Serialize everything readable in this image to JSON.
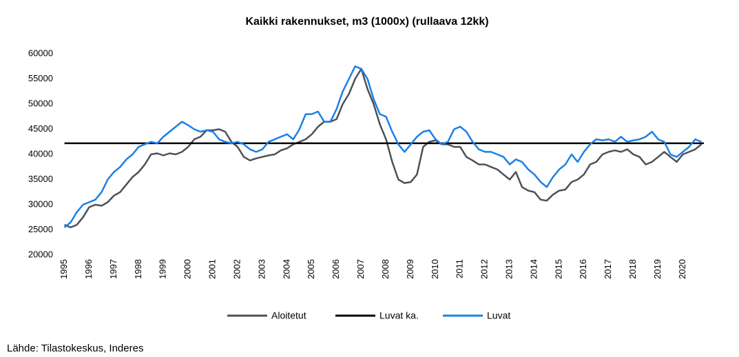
{
  "chart_data": {
    "type": "line",
    "title": "Kaikki rakennukset, m3 (1000x) (rullaava 12kk)",
    "source": "Lähde: Tilastokeskus, Inderes",
    "x": [
      1995,
      1995.25,
      1995.5,
      1995.75,
      1996,
      1996.25,
      1996.5,
      1996.75,
      1997,
      1997.25,
      1997.5,
      1997.75,
      1998,
      1998.25,
      1998.5,
      1998.75,
      1999,
      1999.25,
      1999.5,
      1999.75,
      2000,
      2000.25,
      2000.5,
      2000.75,
      2001,
      2001.25,
      2001.5,
      2001.75,
      2002,
      2002.25,
      2002.5,
      2002.75,
      2003,
      2003.25,
      2003.5,
      2003.75,
      2004,
      2004.25,
      2004.5,
      2004.75,
      2005,
      2005.25,
      2005.5,
      2005.75,
      2006,
      2006.25,
      2006.5,
      2006.75,
      2007,
      2007.25,
      2007.5,
      2007.75,
      2008,
      2008.25,
      2008.5,
      2008.75,
      2009,
      2009.25,
      2009.5,
      2009.75,
      2010,
      2010.25,
      2010.5,
      2010.75,
      2011,
      2011.25,
      2011.5,
      2011.75,
      2012,
      2012.25,
      2012.5,
      2012.75,
      2013,
      2013.25,
      2013.5,
      2013.75,
      2014,
      2014.25,
      2014.5,
      2014.75,
      2015,
      2015.25,
      2015.5,
      2015.75,
      2016,
      2016.25,
      2016.5,
      2016.75,
      2017,
      2017.25,
      2017.5,
      2017.75,
      2018,
      2018.25,
      2018.5,
      2018.75,
      2019,
      2019.25,
      2019.5,
      2019.75,
      2020,
      2020.25,
      2020.5,
      2020.75
    ],
    "series": [
      {
        "name": "Aloitetut",
        "color": "#4b5059",
        "values": [
          26000,
          25500,
          26000,
          27500,
          29500,
          30000,
          29800,
          30500,
          31800,
          32500,
          34000,
          35500,
          36500,
          38000,
          40000,
          40200,
          39800,
          40200,
          40000,
          40500,
          41500,
          43000,
          43500,
          44800,
          44800,
          45000,
          44500,
          42500,
          41500,
          39500,
          38800,
          39200,
          39500,
          39800,
          40000,
          40800,
          41200,
          42000,
          42500,
          43000,
          44000,
          45500,
          46500,
          46500,
          47000,
          50000,
          52000,
          55000,
          57000,
          53000,
          50000,
          46000,
          43000,
          38500,
          35000,
          34300,
          34500,
          36000,
          41500,
          42500,
          42800,
          42000,
          42000,
          41500,
          41500,
          39500,
          38800,
          38000,
          38000,
          37500,
          37000,
          36000,
          35000,
          36500,
          33500,
          32800,
          32500,
          31000,
          30800,
          32000,
          32800,
          33000,
          34500,
          35000,
          36000,
          38000,
          38500,
          40000,
          40500,
          40800,
          40500,
          41000,
          40000,
          39500,
          38000,
          38500,
          39500,
          40500,
          39500,
          38500,
          40000,
          40500,
          41000,
          42000
        ]
      },
      {
        "name": "Luvat ka.",
        "color": "#000000",
        "x": [
          1995,
          2020.85
        ],
        "values": [
          42200,
          42200
        ]
      },
      {
        "name": "Luvat",
        "color": "#1a7fe8",
        "values": [
          25500,
          26500,
          28500,
          30000,
          30500,
          31000,
          32500,
          35000,
          36500,
          37500,
          39000,
          40000,
          41500,
          42000,
          42500,
          42200,
          43500,
          44500,
          45500,
          46500,
          45800,
          45000,
          44500,
          44800,
          44500,
          43000,
          42500,
          42200,
          42500,
          42000,
          41000,
          40500,
          41000,
          42500,
          43000,
          43500,
          44000,
          43000,
          45000,
          48000,
          48000,
          48500,
          46500,
          46500,
          49000,
          52500,
          55000,
          57500,
          57000,
          55000,
          51000,
          48000,
          47500,
          44500,
          42000,
          40500,
          42000,
          43500,
          44500,
          44800,
          43000,
          42000,
          42500,
          45000,
          45500,
          44500,
          42500,
          41000,
          40500,
          40500,
          40000,
          39500,
          38000,
          39000,
          38500,
          37000,
          36000,
          34500,
          33500,
          35500,
          37000,
          38000,
          40000,
          38500,
          40500,
          42000,
          43000,
          42800,
          43000,
          42500,
          43500,
          42500,
          42800,
          43000,
          43500,
          44500,
          43000,
          42500,
          40000,
          39500,
          40500,
          41500,
          43000,
          42500
        ]
      }
    ],
    "xlim": [
      1994.9,
      2020.85
    ],
    "xticks": [
      1995,
      1996,
      1997,
      1998,
      1999,
      2000,
      2001,
      2002,
      2003,
      2004,
      2005,
      2006,
      2007,
      2008,
      2009,
      2010,
      2011,
      2012,
      2013,
      2014,
      2015,
      2016,
      2017,
      2018,
      2019,
      2020
    ],
    "ylim": [
      20000,
      60000
    ],
    "yticks": [
      20000,
      25000,
      30000,
      35000,
      40000,
      45000,
      50000,
      55000,
      60000
    ],
    "grid": false,
    "legend": "bottom"
  }
}
